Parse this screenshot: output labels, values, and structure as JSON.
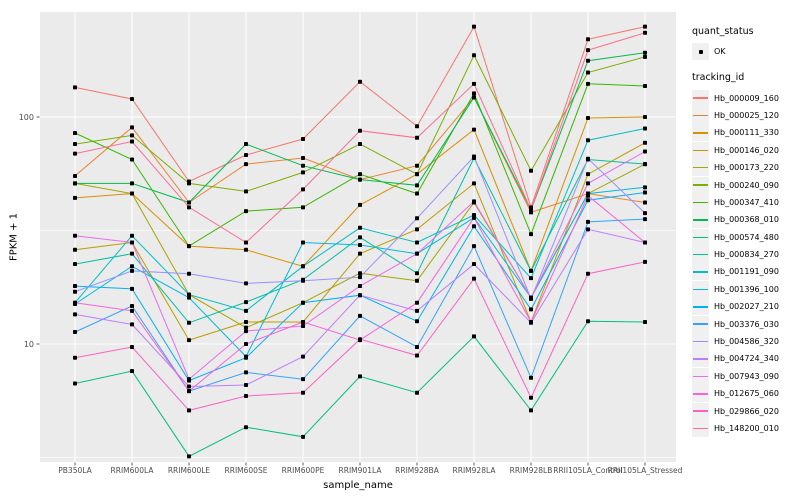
{
  "legend": {
    "quant_status_title": "quant_status",
    "ok_label": "OK",
    "tracking_id_title": "tracking_id"
  },
  "colors": {
    "background": "#FFFFFF",
    "panel_bg": "#EBEBEB",
    "grid": "#FFFFFF",
    "axis_text": "#4D4D4D",
    "tick": "#333333",
    "point": "#000000",
    "key_bg": "#F0F0F0"
  },
  "chart_data": {
    "type": "line",
    "title": "",
    "xlabel": "sample_name",
    "ylabel": "FPKM + 1",
    "y_scale": "log10",
    "ylim": [
      3,
      300
    ],
    "y_major_ticks": [
      10,
      100
    ],
    "y_tick_labels": [
      "10",
      "100"
    ],
    "y_minor_ticks": [
      3.16,
      31.6
    ],
    "grid": true,
    "legend_position": "right",
    "point_shape": "small-black-square",
    "quant_status": "OK",
    "categories": [
      "PB350LA",
      "RRIM600LA",
      "RRIM600LE",
      "RRIM600SE",
      "RRIM600PE",
      "RRIM901LA",
      "RRIM928BA",
      "RRIM928LA",
      "RRIM928LB",
      "RRII105LA_Control",
      "RRII105LA_Stressed"
    ],
    "series": [
      {
        "tracking_id": "Hb_000009_160",
        "color": "#F8766D",
        "values": [
          135,
          120,
          52,
          68,
          80,
          143,
          91,
          250,
          40,
          220,
          250
        ]
      },
      {
        "tracking_id": "Hb_000025_120",
        "color": "#EA8331",
        "values": [
          55,
          90,
          42,
          62,
          66,
          53,
          61,
          122,
          38,
          46,
          42
        ]
      },
      {
        "tracking_id": "Hb_000111_330",
        "color": "#D89000",
        "values": [
          44,
          46,
          27,
          26,
          22,
          41,
          56,
          88,
          21,
          99,
          100
        ]
      },
      {
        "tracking_id": "Hb_000146_020",
        "color": "#C09B00",
        "values": [
          26,
          28,
          10.4,
          12.5,
          12.5,
          25,
          32,
          51,
          12.5,
          56,
          77
        ]
      },
      {
        "tracking_id": "Hb_000173_220",
        "color": "#A3A500",
        "values": [
          51,
          46,
          16.5,
          11.8,
          15.2,
          20.5,
          19,
          42,
          16,
          46,
          62
        ]
      },
      {
        "tracking_id": "Hb_000240_090",
        "color": "#7CAE00",
        "values": [
          76,
          83,
          51,
          47,
          57,
          76,
          56,
          187,
          58,
          157,
          184
        ]
      },
      {
        "tracking_id": "Hb_000347_410",
        "color": "#39B600",
        "values": [
          85,
          65,
          27,
          38.5,
          40,
          56,
          46,
          127,
          30.5,
          140,
          137
        ]
      },
      {
        "tracking_id": "Hb_000368_010",
        "color": "#00BB4E",
        "values": [
          51,
          51,
          42,
          76,
          61,
          53,
          50,
          122,
          39,
          177,
          192
        ]
      },
      {
        "tracking_id": "Hb_000574_480",
        "color": "#00C079",
        "values": [
          6.7,
          7.6,
          3.2,
          4.3,
          3.9,
          7.2,
          6.1,
          10.8,
          5.1,
          12.6,
          12.5
        ]
      },
      {
        "tracking_id": "Hb_000834_270",
        "color": "#00C19F",
        "values": [
          22.5,
          25,
          12.4,
          15.3,
          19.2,
          29.5,
          20.5,
          66,
          21,
          65,
          62
        ]
      },
      {
        "tracking_id": "Hb_001191_090",
        "color": "#00BFC4",
        "values": [
          15.2,
          30,
          16.5,
          14,
          22,
          32.5,
          28,
          37,
          19.5,
          79,
          89
        ]
      },
      {
        "tracking_id": "Hb_001396_100",
        "color": "#00BAE0",
        "values": [
          15,
          22,
          16,
          8.8,
          28,
          27.3,
          25,
          36,
          16,
          46,
          49
        ]
      },
      {
        "tracking_id": "Hb_002027_210",
        "color": "#00B0F6",
        "values": [
          18,
          17.5,
          6.9,
          8.7,
          15.2,
          16.4,
          12.6,
          33,
          14.2,
          43,
          46.5
        ]
      },
      {
        "tracking_id": "Hb_003376_030",
        "color": "#35A2FF",
        "values": [
          11.3,
          14.7,
          6.2,
          7.5,
          7,
          13.3,
          9.7,
          27,
          7.1,
          34.5,
          35.5
        ]
      },
      {
        "tracking_id": "Hb_004586_320",
        "color": "#9590FF",
        "values": [
          17,
          21,
          20.4,
          18.5,
          19,
          19.7,
          35.8,
          67,
          15.8,
          65.5,
          37.7
        ]
      },
      {
        "tracking_id": "Hb_004724_340",
        "color": "#BC7EFF",
        "values": [
          13.5,
          12.2,
          6.5,
          6.6,
          8.8,
          16.4,
          14,
          22.5,
          12.4,
          32,
          28
        ]
      },
      {
        "tracking_id": "Hb_007943_090",
        "color": "#E76BF3",
        "values": [
          30,
          28,
          7,
          11.4,
          12,
          18,
          25,
          42.5,
          16,
          51,
          70.5
        ]
      },
      {
        "tracking_id": "Hb_012675_060",
        "color": "#FA62DB",
        "values": [
          15.2,
          14,
          6.2,
          10,
          12.5,
          10.4,
          15.2,
          36,
          12.5,
          45,
          28
        ]
      },
      {
        "tracking_id": "Hb_029866_020",
        "color": "#FF61C2",
        "values": [
          8.7,
          9.7,
          5.1,
          5.9,
          6.1,
          10.5,
          8.9,
          19.4,
          5.8,
          20.4,
          23
        ]
      },
      {
        "tracking_id": "Hb_148200_010",
        "color": "#FF6C91",
        "values": [
          69,
          78,
          40,
          28,
          48,
          87,
          81,
          140,
          39,
          197,
          235
        ]
      }
    ]
  }
}
